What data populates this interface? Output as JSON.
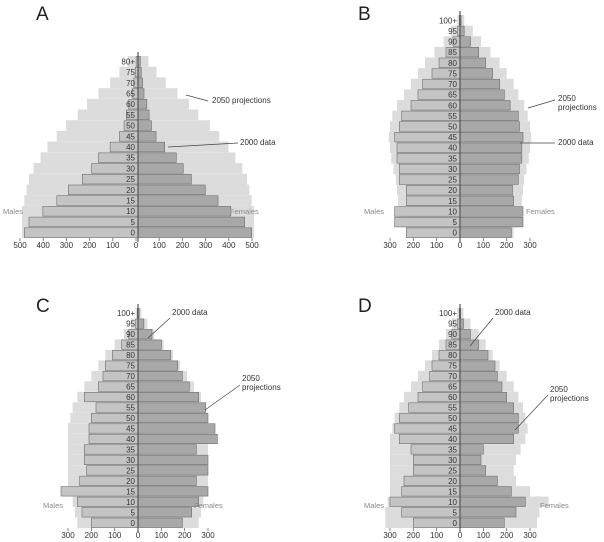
{
  "panel_letters": [
    "A",
    "B",
    "C",
    "D"
  ],
  "chart_data": [
    {
      "type": "bar",
      "subtype": "population-pyramid",
      "panel": "A",
      "age_groups": [
        "0",
        "5",
        "10",
        "15",
        "20",
        "25",
        "30",
        "35",
        "40",
        "45",
        "50",
        "55",
        "60",
        "65",
        "70",
        "75",
        "80+"
      ],
      "left_label": "Males",
      "right_label": "Females",
      "xlim": [
        -500,
        500
      ],
      "xticks": [
        500,
        400,
        300,
        200,
        100,
        0,
        100,
        200,
        300,
        400,
        500
      ],
      "series": [
        {
          "name": "2000 data",
          "males": [
            490,
            470,
            410,
            350,
            300,
            240,
            200,
            170,
            120,
            80,
            60,
            50,
            40,
            25,
            18,
            12,
            8
          ],
          "females": [
            490,
            460,
            400,
            345,
            290,
            230,
            195,
            165,
            115,
            78,
            58,
            48,
            38,
            26,
            20,
            14,
            10
          ]
        },
        {
          "name": "2050 projections",
          "males": [
            500,
            500,
            500,
            490,
            480,
            470,
            450,
            420,
            390,
            350,
            310,
            260,
            220,
            170,
            120,
            80,
            45
          ],
          "females": [
            500,
            500,
            500,
            490,
            480,
            470,
            450,
            420,
            390,
            350,
            310,
            260,
            220,
            170,
            120,
            80,
            45
          ]
        }
      ],
      "annotations": [
        {
          "text": "2050 projections"
        },
        {
          "text": "2000 data"
        }
      ]
    },
    {
      "type": "bar",
      "subtype": "population-pyramid",
      "panel": "B",
      "age_groups": [
        "0",
        "5",
        "10",
        "15",
        "20",
        "25",
        "30",
        "35",
        "40",
        "45",
        "50",
        "55",
        "60",
        "65",
        "70",
        "75",
        "80",
        "85",
        "90",
        "95",
        "100+"
      ],
      "left_label": "Males",
      "right_label": "Females",
      "xlim": [
        -300,
        300
      ],
      "xticks": [
        300,
        200,
        100,
        0,
        100,
        200,
        300
      ],
      "series": [
        {
          "name": "2000 data",
          "males": [
            230,
            280,
            280,
            230,
            230,
            260,
            260,
            270,
            270,
            280,
            260,
            250,
            210,
            180,
            160,
            120,
            90,
            60,
            30,
            10,
            3
          ],
          "females": [
            220,
            270,
            270,
            230,
            225,
            250,
            255,
            265,
            265,
            270,
            255,
            250,
            215,
            190,
            170,
            140,
            110,
            80,
            45,
            18,
            5
          ]
        },
        {
          "name": "2050 projections",
          "males": [
            230,
            250,
            260,
            265,
            270,
            275,
            285,
            295,
            300,
            305,
            300,
            290,
            270,
            240,
            210,
            180,
            150,
            110,
            70,
            40,
            12
          ],
          "females": [
            230,
            250,
            260,
            265,
            270,
            275,
            285,
            295,
            300,
            305,
            300,
            290,
            275,
            250,
            230,
            200,
            170,
            130,
            90,
            55,
            18
          ]
        }
      ],
      "annotations": [
        {
          "text": "2050\nprojections"
        },
        {
          "text": "2000 data"
        }
      ]
    },
    {
      "type": "bar",
      "subtype": "population-pyramid",
      "panel": "C",
      "age_groups": [
        "0",
        "5",
        "10",
        "15",
        "20",
        "25",
        "30",
        "35",
        "40",
        "45",
        "50",
        "55",
        "60",
        "65",
        "70",
        "75",
        "80",
        "85",
        "90",
        "95",
        "100+"
      ],
      "left_label": "Males",
      "right_label": "Females",
      "xlim": [
        -300,
        300
      ],
      "xticks": [
        300,
        200,
        100,
        0,
        100,
        200,
        300
      ],
      "series": [
        {
          "name": "2000 data",
          "males": [
            200,
            240,
            260,
            330,
            250,
            220,
            230,
            230,
            210,
            210,
            200,
            180,
            230,
            170,
            150,
            140,
            110,
            70,
            40,
            10,
            3
          ],
          "females": [
            190,
            230,
            260,
            300,
            250,
            300,
            300,
            250,
            340,
            330,
            300,
            290,
            260,
            220,
            190,
            170,
            140,
            100,
            60,
            25,
            5
          ]
        },
        {
          "name": "2050 projections",
          "males": [
            260,
            270,
            280,
            290,
            300,
            300,
            300,
            300,
            300,
            300,
            290,
            280,
            260,
            230,
            200,
            170,
            140,
            100,
            60,
            30,
            10
          ],
          "females": [
            260,
            270,
            280,
            290,
            300,
            300,
            300,
            300,
            300,
            300,
            300,
            290,
            270,
            240,
            210,
            180,
            150,
            110,
            70,
            40,
            15
          ]
        }
      ],
      "annotations": [
        {
          "text": "2000 data"
        },
        {
          "text": "2050\nprojections"
        }
      ]
    },
    {
      "type": "bar",
      "subtype": "population-pyramid",
      "panel": "D",
      "age_groups": [
        "0",
        "5",
        "10",
        "15",
        "20",
        "25",
        "30",
        "35",
        "40",
        "45",
        "50",
        "55",
        "60",
        "65",
        "70",
        "75",
        "80",
        "85",
        "90",
        "95",
        "100+"
      ],
      "left_label": "Males",
      "right_label": "Females",
      "xlim": [
        -300,
        300
      ],
      "xticks": [
        300,
        200,
        100,
        0,
        100,
        200,
        300
      ],
      "series": [
        {
          "name": "2000 data",
          "males": [
            200,
            250,
            300,
            250,
            240,
            200,
            200,
            210,
            260,
            280,
            260,
            220,
            180,
            160,
            130,
            120,
            90,
            60,
            35,
            10,
            3
          ],
          "females": [
            190,
            240,
            280,
            220,
            160,
            110,
            90,
            100,
            230,
            250,
            250,
            230,
            200,
            180,
            160,
            150,
            120,
            80,
            45,
            15,
            3
          ]
        },
        {
          "name": "2050 projections",
          "males": [
            320,
            320,
            310,
            300,
            300,
            300,
            300,
            300,
            300,
            290,
            280,
            260,
            240,
            210,
            180,
            150,
            120,
            90,
            60,
            35,
            12
          ],
          "females": [
            330,
            340,
            380,
            300,
            240,
            230,
            240,
            260,
            280,
            290,
            280,
            270,
            250,
            230,
            200,
            170,
            140,
            110,
            80,
            45,
            15
          ]
        }
      ],
      "annotations": [
        {
          "text": "2000 data"
        },
        {
          "text": "2050\nprojections"
        }
      ]
    }
  ],
  "colors": {
    "light_fill": "#dcdcdc",
    "data_fill": "#a8a8a8",
    "data_stroke": "#6e6e6e",
    "center_line": "#555555",
    "text": "#333333"
  }
}
